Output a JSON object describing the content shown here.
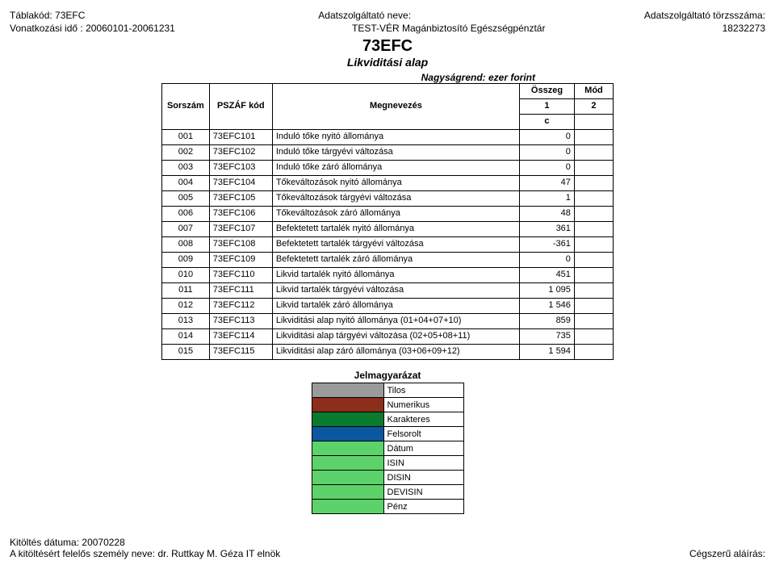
{
  "header": {
    "tablakod_label": "Táblakód:",
    "tablakod_value": "73EFC",
    "vonatkozasi_label": "Vonatkozási idő :",
    "vonatkozasi_value": "20060101-20061231",
    "adatszolgaltato_neve_label": "Adatszolgáltató neve:",
    "adatszolgaltato_neve_value": "TEST-VÉR Magánbiztosító Egészségpénztár",
    "torzsszam_label": "Adatszolgáltató törzsszáma:",
    "torzsszam_value": "18232273",
    "big_code": "73EFC",
    "subtitle": "Likviditási alap",
    "scale_note": "Nagyságrend: ezer forint"
  },
  "table": {
    "col_headers": {
      "sorszam": "Sorszám",
      "pszaf": "PSZÁF kód",
      "megnevezes": "Megnevezés",
      "osszeg": "Összeg",
      "mod": "Mód"
    },
    "sub_headers": {
      "c1": "1",
      "c2": "2",
      "cc": "c"
    },
    "rows": [
      {
        "n": "001",
        "code": "73EFC101",
        "label": "Induló tőke nyitó állománya",
        "val": "0",
        "mod": ""
      },
      {
        "n": "002",
        "code": "73EFC102",
        "label": "Induló tőke tárgyévi változása",
        "val": "0",
        "mod": ""
      },
      {
        "n": "003",
        "code": "73EFC103",
        "label": "Induló tőke záró állománya",
        "val": "0",
        "mod": ""
      },
      {
        "n": "004",
        "code": "73EFC104",
        "label": "Tőkeváltozások nyitó állománya",
        "val": "47",
        "mod": ""
      },
      {
        "n": "005",
        "code": "73EFC105",
        "label": "Tőkeváltozások tárgyévi változása",
        "val": "1",
        "mod": ""
      },
      {
        "n": "006",
        "code": "73EFC106",
        "label": "Tőkeváltozások záró állománya",
        "val": "48",
        "mod": ""
      },
      {
        "n": "007",
        "code": "73EFC107",
        "label": "Befektetett tartalék nyitó állománya",
        "val": "361",
        "mod": ""
      },
      {
        "n": "008",
        "code": "73EFC108",
        "label": "Befektetett tartalék tárgyévi változása",
        "val": "-361",
        "mod": ""
      },
      {
        "n": "009",
        "code": "73EFC109",
        "label": "Befektetett tartalék záró állománya",
        "val": "0",
        "mod": ""
      },
      {
        "n": "010",
        "code": "73EFC110",
        "label": "Likvid tartalék nyitó állománya",
        "val": "451",
        "mod": ""
      },
      {
        "n": "011",
        "code": "73EFC111",
        "label": "Likvid tartalék tárgyévi változása",
        "val": "1 095",
        "mod": ""
      },
      {
        "n": "012",
        "code": "73EFC112",
        "label": "Likvid tartalék záró állománya",
        "val": "1 546",
        "mod": ""
      },
      {
        "n": "013",
        "code": "73EFC113",
        "label": "Likviditási alap nyitó állománya (01+04+07+10)",
        "val": "859",
        "mod": ""
      },
      {
        "n": "014",
        "code": "73EFC114",
        "label": "Likviditási alap tárgyévi változása (02+05+08+11)",
        "val": "735",
        "mod": ""
      },
      {
        "n": "015",
        "code": "73EFC115",
        "label": "Likviditási alap záró állománya (03+06+09+12)",
        "val": "1 594",
        "mod": ""
      }
    ]
  },
  "legend": {
    "title": "Jelmagyarázat",
    "items": [
      {
        "color": "#9a9a9a",
        "label": "Tilos"
      },
      {
        "color": "#8b2f1a",
        "label": "Numerikus"
      },
      {
        "color": "#0a7a2e",
        "label": "Karakteres"
      },
      {
        "color": "#0a58a0",
        "label": "Felsorolt"
      },
      {
        "color": "#5bd36a",
        "label": "Dátum"
      },
      {
        "color": "#5bd36a",
        "label": "ISIN"
      },
      {
        "color": "#5bd36a",
        "label": "DISIN"
      },
      {
        "color": "#5bd36a",
        "label": "DEVISIN"
      },
      {
        "color": "#5bd36a",
        "label": "Pénz"
      }
    ]
  },
  "footer": {
    "kitoltes_label": "Kitöltés dátuma:",
    "kitoltes_value": "20070228",
    "felelos_label": "A kitöltésért felelős személy neve:",
    "felelos_value": "dr. Ruttkay M. Géza IT elnök",
    "alairas": "Cégszerű aláírás:"
  }
}
